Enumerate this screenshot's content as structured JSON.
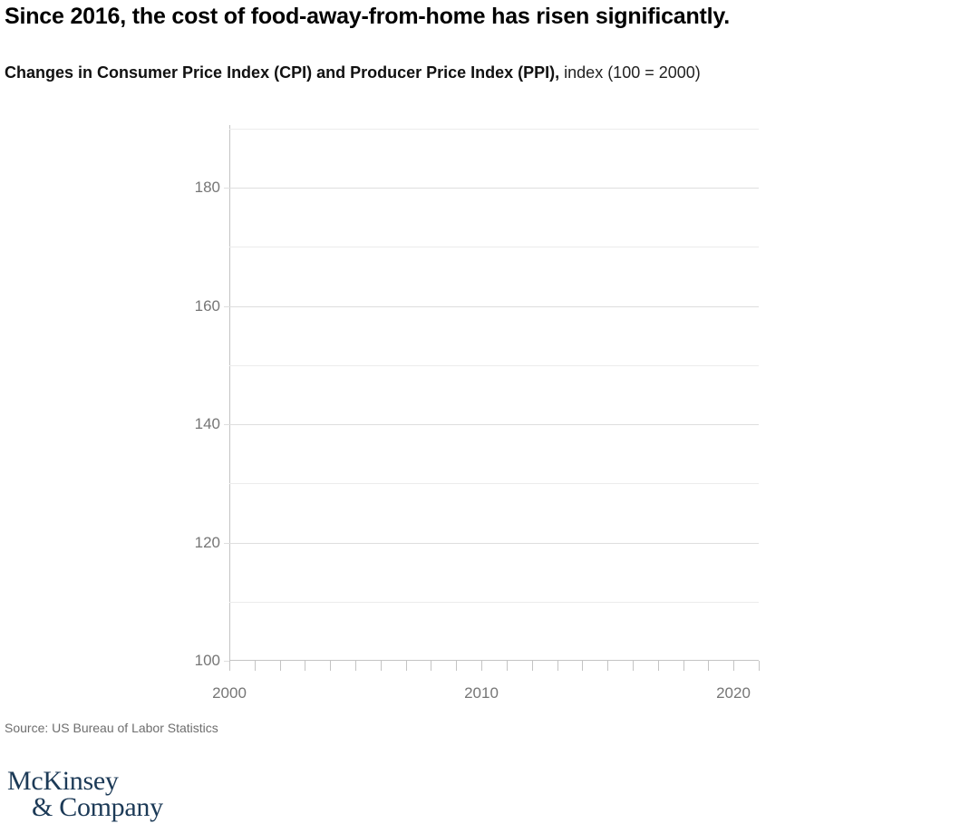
{
  "header": {
    "title": "Since 2016, the cost of food-away-from-home has risen significantly.",
    "subtitle_bold": "Changes in Consumer Price Index (CPI) and Producer Price Index (PPI),",
    "subtitle_regular": " index (100 = 2000)"
  },
  "chart_data": {
    "type": "line",
    "title": "Changes in Consumer Price Index (CPI) and Producer Price Index (PPI)",
    "units_label": "index (100 = 2000)",
    "xlabel": "",
    "ylabel": "",
    "xlim": [
      2000,
      2021
    ],
    "ylim": [
      100,
      190
    ],
    "x_axis": {
      "tick_interval": 1,
      "labeled_ticks": [
        2000,
        2010,
        2020
      ],
      "labels": [
        "2000",
        "2010",
        "2020"
      ]
    },
    "y_axis": {
      "gridline_interval": 10,
      "gridline_values": [
        110,
        120,
        130,
        140,
        150,
        160,
        170,
        180,
        190
      ],
      "labeled_ticks": [
        100,
        120,
        140,
        160,
        180
      ],
      "labels": [
        "100",
        "120",
        "140",
        "160",
        "180"
      ]
    },
    "grid": "horizontal",
    "legend": "none",
    "series": []
  },
  "source": {
    "text": "Source: US Bureau of Labor Statistics"
  },
  "logo": {
    "line1": "McKinsey",
    "line2": "& Company"
  },
  "colors": {
    "title_text": "#000000",
    "axis_label": "#767676",
    "gridline_major": "#dedede",
    "gridline_minor": "#ececec",
    "axis_line": "#c4c4c4",
    "source_text": "#6e6e6e",
    "logo_navy": "#1c3a57",
    "background": "#ffffff"
  }
}
